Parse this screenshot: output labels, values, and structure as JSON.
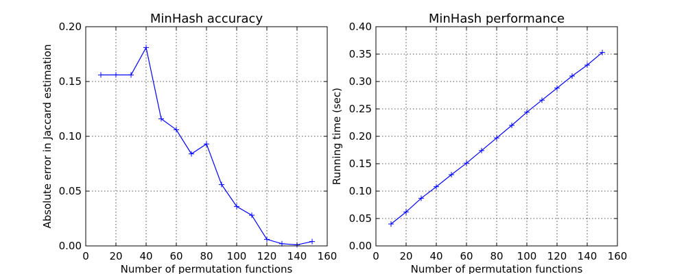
{
  "chart_data": [
    {
      "type": "line",
      "title": "MinHash accuracy",
      "xlabel": "Number of permutation functions",
      "ylabel": "Absolute error in Jaccard estimation",
      "xlim": [
        0,
        160
      ],
      "ylim": [
        0,
        0.2
      ],
      "xticks": [
        "0",
        "20",
        "40",
        "60",
        "80",
        "100",
        "120",
        "140",
        "160"
      ],
      "yticks": [
        "0.00",
        "0.05",
        "0.10",
        "0.15",
        "0.20"
      ],
      "grid": true,
      "series": [
        {
          "color": "#0000ff",
          "marker": "plus",
          "x": [
            10,
            20,
            30,
            40,
            50,
            60,
            70,
            80,
            90,
            100,
            110,
            120,
            130,
            140,
            150
          ],
          "y": [
            0.156,
            0.156,
            0.156,
            0.181,
            0.116,
            0.106,
            0.084,
            0.093,
            0.056,
            0.036,
            0.028,
            0.006,
            0.002,
            0.001,
            0.004
          ]
        }
      ]
    },
    {
      "type": "line",
      "title": "MinHash performance",
      "xlabel": "Number of permutation functions",
      "ylabel": "Running time (sec)",
      "xlim": [
        0,
        160
      ],
      "ylim": [
        0,
        0.4
      ],
      "xticks": [
        "0",
        "20",
        "40",
        "60",
        "80",
        "100",
        "120",
        "140",
        "160"
      ],
      "yticks": [
        "0.00",
        "0.05",
        "0.10",
        "0.15",
        "0.20",
        "0.25",
        "0.30",
        "0.35",
        "0.40"
      ],
      "grid": true,
      "series": [
        {
          "color": "#0000ff",
          "marker": "plus",
          "x": [
            10,
            20,
            30,
            40,
            50,
            60,
            70,
            80,
            90,
            100,
            110,
            120,
            130,
            140,
            150
          ],
          "y": [
            0.04,
            0.062,
            0.087,
            0.108,
            0.13,
            0.151,
            0.174,
            0.197,
            0.22,
            0.244,
            0.266,
            0.288,
            0.31,
            0.33,
            0.353
          ]
        }
      ]
    }
  ]
}
